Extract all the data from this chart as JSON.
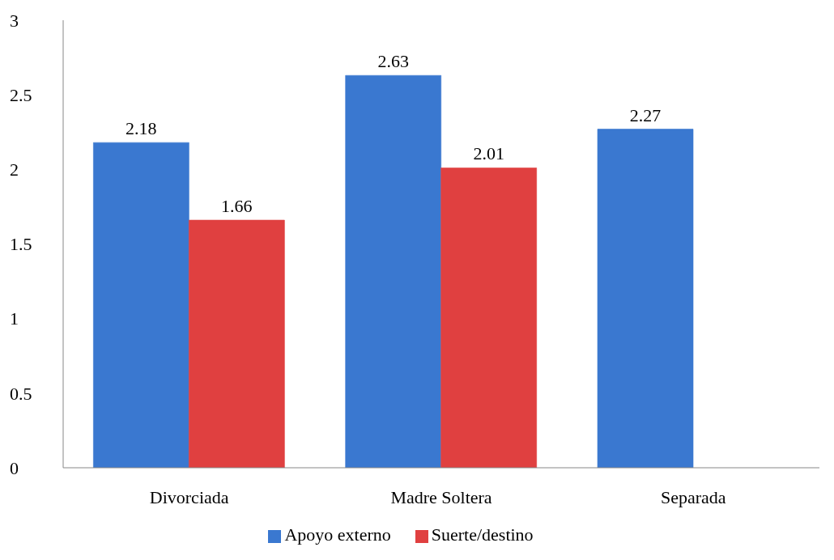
{
  "chart_data": {
    "type": "bar",
    "categories": [
      "Divorciada",
      "Madre Soltera",
      "Separada"
    ],
    "series": [
      {
        "name": "Apoyo externo",
        "color": "#3a78d0",
        "values": [
          2.18,
          2.63,
          2.27
        ]
      },
      {
        "name": "Suerte/destino",
        "color": "#e04040",
        "values": [
          1.66,
          2.01,
          null
        ]
      }
    ],
    "ylim": [
      0,
      3
    ],
    "yticks": [
      0,
      0.5,
      1,
      1.5,
      2,
      2.5,
      3
    ],
    "data_labels": true,
    "grid": false,
    "legend": "bottom"
  }
}
